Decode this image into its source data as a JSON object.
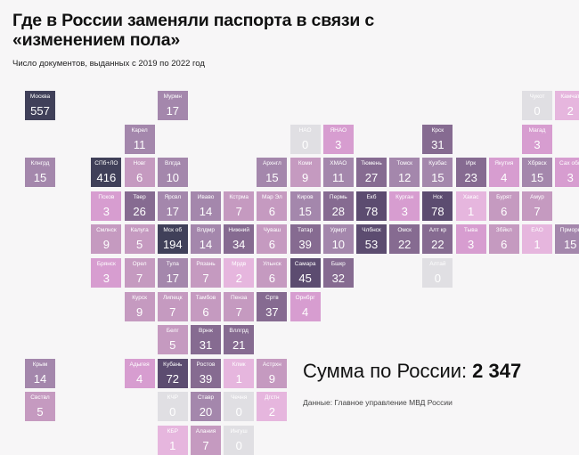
{
  "title": "Где в России заменяли паспорта в связи с «изменением пола»",
  "subtitle": "Число документов, выданных с 2019 по 2022 год",
  "total_label": "Сумма по России:",
  "total_value": "2 347",
  "source": "Данные: Главное управление МВД России",
  "colors": {
    "background": "#f7f6f7",
    "scale": [
      "#e0dfe3",
      "#e6b6de",
      "#d79dd0",
      "#c59ac0",
      "#a487ac",
      "#866b91",
      "#5c4c70",
      "#404059"
    ]
  },
  "regions": [
    {
      "name": "Москва",
      "value": 557,
      "col": 0,
      "row": 0
    },
    {
      "name": "Мурмн",
      "value": 17,
      "col": 4,
      "row": 0
    },
    {
      "name": "Чукот",
      "value": 0,
      "col": 15,
      "row": 0
    },
    {
      "name": "Камчат",
      "value": 2,
      "col": 16,
      "row": 0
    },
    {
      "name": "Карел",
      "value": 11,
      "col": 3,
      "row": 1
    },
    {
      "name": "НАО",
      "value": 0,
      "col": 8,
      "row": 1
    },
    {
      "name": "ЯНАО",
      "value": 3,
      "col": 9,
      "row": 1
    },
    {
      "name": "Крск",
      "value": 31,
      "col": 12,
      "row": 1
    },
    {
      "name": "Магад",
      "value": 3,
      "col": 15,
      "row": 1
    },
    {
      "name": "Клнгрд",
      "value": 15,
      "col": 0,
      "row": 2
    },
    {
      "name": "СПб+ЛО",
      "value": 416,
      "col": 2,
      "row": 2
    },
    {
      "name": "Новг",
      "value": 6,
      "col": 3,
      "row": 2
    },
    {
      "name": "Влгда",
      "value": 10,
      "col": 4,
      "row": 2
    },
    {
      "name": "Архнгл",
      "value": 15,
      "col": 7,
      "row": 2
    },
    {
      "name": "Коми",
      "value": 9,
      "col": 8,
      "row": 2
    },
    {
      "name": "ХМАО",
      "value": 11,
      "col": 9,
      "row": 2
    },
    {
      "name": "Тюмень",
      "value": 27,
      "col": 10,
      "row": 2
    },
    {
      "name": "Томск",
      "value": 12,
      "col": 11,
      "row": 2
    },
    {
      "name": "Кузбас",
      "value": 15,
      "col": 12,
      "row": 2
    },
    {
      "name": "Ирк",
      "value": 23,
      "col": 13,
      "row": 2
    },
    {
      "name": "Якутия",
      "value": 4,
      "col": 14,
      "row": 2
    },
    {
      "name": "Хбрвск",
      "value": 15,
      "col": 15,
      "row": 2
    },
    {
      "name": "Сах обл",
      "value": 3,
      "col": 16,
      "row": 2
    },
    {
      "name": "Псков",
      "value": 3,
      "col": 2,
      "row": 3
    },
    {
      "name": "Твер",
      "value": 26,
      "col": 3,
      "row": 3
    },
    {
      "name": "Ярсвл",
      "value": 17,
      "col": 4,
      "row": 3
    },
    {
      "name": "Иваво",
      "value": 14,
      "col": 5,
      "row": 3
    },
    {
      "name": "Кстрма",
      "value": 7,
      "col": 6,
      "row": 3
    },
    {
      "name": "Мар Эл",
      "value": 6,
      "col": 7,
      "row": 3
    },
    {
      "name": "Киров",
      "value": 15,
      "col": 8,
      "row": 3
    },
    {
      "name": "Пермь",
      "value": 28,
      "col": 9,
      "row": 3
    },
    {
      "name": "Екб",
      "value": 78,
      "col": 10,
      "row": 3
    },
    {
      "name": "Курган",
      "value": 3,
      "col": 11,
      "row": 3
    },
    {
      "name": "Нск",
      "value": 78,
      "col": 12,
      "row": 3
    },
    {
      "name": "Хакас",
      "value": 1,
      "col": 13,
      "row": 3
    },
    {
      "name": "Бурят",
      "value": 6,
      "col": 14,
      "row": 3
    },
    {
      "name": "Амур",
      "value": 7,
      "col": 15,
      "row": 3
    },
    {
      "name": "Смлнск",
      "value": 9,
      "col": 2,
      "row": 4
    },
    {
      "name": "Калуга",
      "value": 5,
      "col": 3,
      "row": 4
    },
    {
      "name": "Мск об",
      "value": 194,
      "col": 4,
      "row": 4
    },
    {
      "name": "Влдмр",
      "value": 14,
      "col": 5,
      "row": 4
    },
    {
      "name": "Нижний",
      "value": 34,
      "col": 6,
      "row": 4
    },
    {
      "name": "Чуваш",
      "value": 6,
      "col": 7,
      "row": 4
    },
    {
      "name": "Татар",
      "value": 39,
      "col": 8,
      "row": 4
    },
    {
      "name": "Удмрт",
      "value": 10,
      "col": 9,
      "row": 4
    },
    {
      "name": "Члбнск",
      "value": 53,
      "col": 10,
      "row": 4
    },
    {
      "name": "Омск",
      "value": 22,
      "col": 11,
      "row": 4
    },
    {
      "name": "Алт кр",
      "value": 22,
      "col": 12,
      "row": 4
    },
    {
      "name": "Тыва",
      "value": 3,
      "col": 13,
      "row": 4
    },
    {
      "name": "Збйкл",
      "value": 6,
      "col": 14,
      "row": 4
    },
    {
      "name": "ЕАО",
      "value": 1,
      "col": 15,
      "row": 4
    },
    {
      "name": "Прморк",
      "value": 15,
      "col": 16,
      "row": 4
    },
    {
      "name": "Брянск",
      "value": 3,
      "col": 2,
      "row": 5
    },
    {
      "name": "Орел",
      "value": 7,
      "col": 3,
      "row": 5
    },
    {
      "name": "Тула",
      "value": 17,
      "col": 4,
      "row": 5
    },
    {
      "name": "Рязань",
      "value": 7,
      "col": 5,
      "row": 5
    },
    {
      "name": "Мрдв",
      "value": 2,
      "col": 6,
      "row": 5
    },
    {
      "name": "Ульнск",
      "value": 6,
      "col": 7,
      "row": 5
    },
    {
      "name": "Самара",
      "value": 45,
      "col": 8,
      "row": 5
    },
    {
      "name": "Бшкр",
      "value": 32,
      "col": 9,
      "row": 5
    },
    {
      "name": "Алтай",
      "value": 0,
      "col": 12,
      "row": 5
    },
    {
      "name": "Курск",
      "value": 9,
      "col": 3,
      "row": 6
    },
    {
      "name": "Липецк",
      "value": 7,
      "col": 4,
      "row": 6
    },
    {
      "name": "Тамбов",
      "value": 6,
      "col": 5,
      "row": 6
    },
    {
      "name": "Пенза",
      "value": 7,
      "col": 6,
      "row": 6
    },
    {
      "name": "Сртв",
      "value": 37,
      "col": 7,
      "row": 6
    },
    {
      "name": "Орнбрг",
      "value": 4,
      "col": 8,
      "row": 6
    },
    {
      "name": "Белг",
      "value": 5,
      "col": 4,
      "row": 7
    },
    {
      "name": "Врнж",
      "value": 31,
      "col": 5,
      "row": 7
    },
    {
      "name": "Вллгрд",
      "value": 21,
      "col": 6,
      "row": 7
    },
    {
      "name": "Крым",
      "value": 14,
      "col": 0,
      "row": 8
    },
    {
      "name": "Адыгея",
      "value": 4,
      "col": 3,
      "row": 8
    },
    {
      "name": "Кубань",
      "value": 72,
      "col": 4,
      "row": 8
    },
    {
      "name": "Ростов",
      "value": 39,
      "col": 5,
      "row": 8
    },
    {
      "name": "Клмк",
      "value": 1,
      "col": 6,
      "row": 8
    },
    {
      "name": "Астрхн",
      "value": 9,
      "col": 7,
      "row": 8
    },
    {
      "name": "Свствл",
      "value": 5,
      "col": 0,
      "row": 9
    },
    {
      "name": "КЧР",
      "value": 0,
      "col": 4,
      "row": 9
    },
    {
      "name": "Ставр",
      "value": 20,
      "col": 5,
      "row": 9
    },
    {
      "name": "Чечня",
      "value": 0,
      "col": 6,
      "row": 9
    },
    {
      "name": "Дгстн",
      "value": 2,
      "col": 7,
      "row": 9
    },
    {
      "name": "КБР",
      "value": 1,
      "col": 4,
      "row": 10
    },
    {
      "name": "Алания",
      "value": 7,
      "col": 5,
      "row": 10
    },
    {
      "name": "Ингуш",
      "value": 0,
      "col": 6,
      "row": 10
    }
  ]
}
